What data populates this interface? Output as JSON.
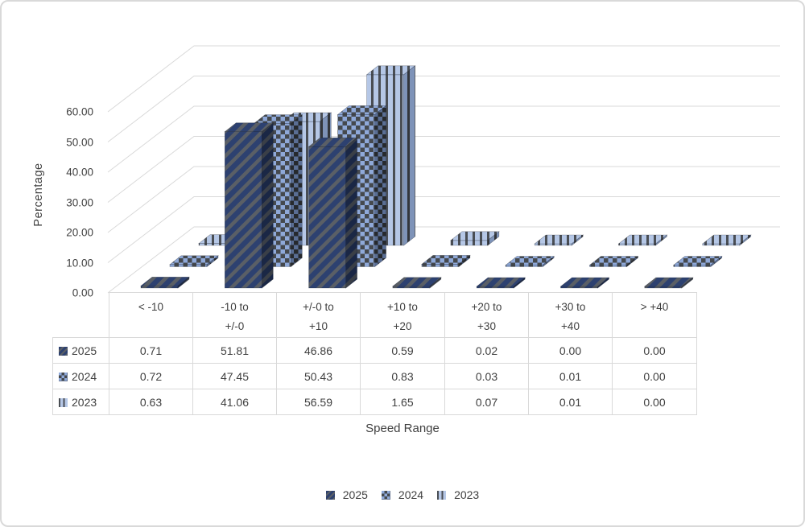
{
  "chart_data": {
    "type": "bar",
    "subtype": "3d-clustered-column-with-series-depth",
    "title": "",
    "categories": [
      "< -10",
      "-10 to +/-0",
      "+/-0 to +10",
      "+10 to +20",
      "+20 to +30",
      "+30 to +40",
      "> +40"
    ],
    "series": [
      {
        "name": "2025",
        "pattern": "diagonal-stripes",
        "values": [
          0.71,
          51.81,
          46.86,
          0.59,
          0.02,
          0.0,
          0.0
        ]
      },
      {
        "name": "2024",
        "pattern": "checkerboard",
        "values": [
          0.72,
          47.45,
          50.43,
          0.83,
          0.03,
          0.01,
          0.0
        ]
      },
      {
        "name": "2023",
        "pattern": "vertical-stripes",
        "values": [
          0.63,
          41.06,
          56.59,
          1.65,
          0.07,
          0.01,
          0.0
        ]
      }
    ],
    "xlabel": "Speed Range",
    "ylabel": "Percentage",
    "ylim": [
      0,
      60
    ],
    "ytick_step": 10,
    "yticks": [
      "60.00",
      "50.00",
      "40.00",
      "30.00",
      "20.00",
      "10.00",
      "0.00"
    ],
    "grid": true,
    "legend_position": "bottom",
    "legend": [
      "2025",
      "2024",
      "2023"
    ],
    "data_table_shown": true,
    "value_format": "0.00"
  },
  "colors": {
    "background": "#ffffff",
    "panel_border": "#d9d9d9",
    "grid": "#d9d9d9",
    "table_border": "#d9d9d9",
    "text": "#404040",
    "s2025_fill": "#2d4170",
    "s2025_stripe": "#5a5f66",
    "s2025_side_fill": "#1a2745",
    "s2025_side_stripe": "#3a3f47",
    "s2024_fill": "#8fa9d9",
    "s2024_check": "#45494e",
    "s2024_side_fill": "#5a6e94",
    "s2024_side_check": "#26292d",
    "s2023_fill": "#b5c7e6",
    "s2023_stripe": "#4a4e54",
    "s2023_side_fill": "#7e93b8",
    "s2023_side_stripe": "#33363b"
  }
}
